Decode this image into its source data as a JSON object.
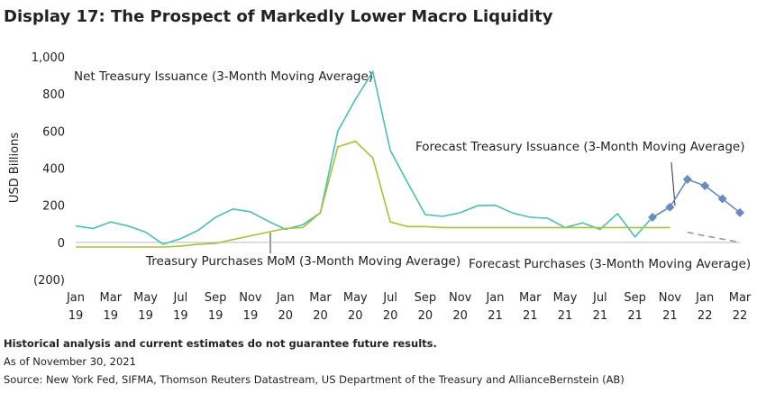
{
  "chart_data": {
    "type": "line",
    "title": "Display 17: The Prospect of Markedly Lower Macro Liquidity",
    "ylabel": "USD Billions",
    "categories": [
      "Jan 19",
      null,
      "Mar 19",
      null,
      "May 19",
      null,
      "Jul 19",
      null,
      "Sep 19",
      null,
      "Nov 19",
      null,
      "Jan 20",
      null,
      "Mar 20",
      null,
      "May 20",
      null,
      "Jul 20",
      null,
      "Sep 20",
      null,
      "Nov 20",
      null,
      "Jan 21",
      null,
      "Mar 21",
      null,
      "May 21",
      null,
      "Jul 21",
      null,
      "Sep 21",
      null,
      "Nov 21",
      null,
      "Jan 22",
      null,
      "Mar 22"
    ],
    "ylim": [
      -200,
      1000
    ],
    "yticks": [
      {
        "value": -200,
        "label": "(200)"
      },
      0,
      200,
      400,
      600,
      800,
      {
        "value": 1000,
        "label": "1,000"
      }
    ],
    "series": [
      {
        "name": "Net Treasury Issuance (3-Month Moving Average)",
        "color": "#4dbfae",
        "values": [
          88,
          75,
          110,
          88,
          55,
          -10,
          20,
          65,
          135,
          180,
          165,
          115,
          70,
          95,
          160,
          600,
          770,
          920,
          495,
          320,
          150,
          140,
          160,
          198,
          200,
          158,
          135,
          130,
          80,
          105,
          70,
          155,
          30,
          135,
          190,
          null,
          null,
          null,
          null
        ]
      },
      {
        "name": "Treasury Purchases MoM (3-Month Moving Average)",
        "color": "#a5c23a",
        "values": [
          -25,
          -25,
          -25,
          -25,
          -25,
          -25,
          -20,
          -10,
          -5,
          15,
          35,
          55,
          75,
          80,
          160,
          515,
          545,
          455,
          110,
          85,
          85,
          80,
          80,
          80,
          80,
          80,
          80,
          80,
          80,
          80,
          80,
          80,
          80,
          80,
          80,
          null,
          null,
          null,
          null
        ]
      },
      {
        "name": "Forecast Treasury Issuance (3-Month Moving Average)",
        "color": "#6a8ac0",
        "marker": "diamond",
        "values": [
          null,
          null,
          null,
          null,
          null,
          null,
          null,
          null,
          null,
          null,
          null,
          null,
          null,
          null,
          null,
          null,
          null,
          null,
          null,
          null,
          null,
          null,
          null,
          null,
          null,
          null,
          null,
          null,
          null,
          null,
          null,
          null,
          null,
          135,
          190,
          340,
          305,
          235,
          160
        ]
      },
      {
        "name": "Forecast Purchases (3-Month Moving Average)",
        "color": "#999999",
        "dash": true,
        "values": [
          null,
          null,
          null,
          null,
          null,
          null,
          null,
          null,
          null,
          null,
          null,
          null,
          null,
          null,
          null,
          null,
          null,
          null,
          null,
          null,
          null,
          null,
          null,
          null,
          null,
          null,
          null,
          null,
          null,
          null,
          null,
          null,
          null,
          null,
          null,
          55,
          35,
          18,
          0
        ]
      }
    ],
    "notes": [
      "Historical analysis and current estimates do not guarantee future results.",
      "As of November 30, 2021",
      "Source: New York Fed, SIFMA, Thomson Reuters Datastream, US Department of the Treasury and AllianceBernstein (AB)"
    ]
  }
}
